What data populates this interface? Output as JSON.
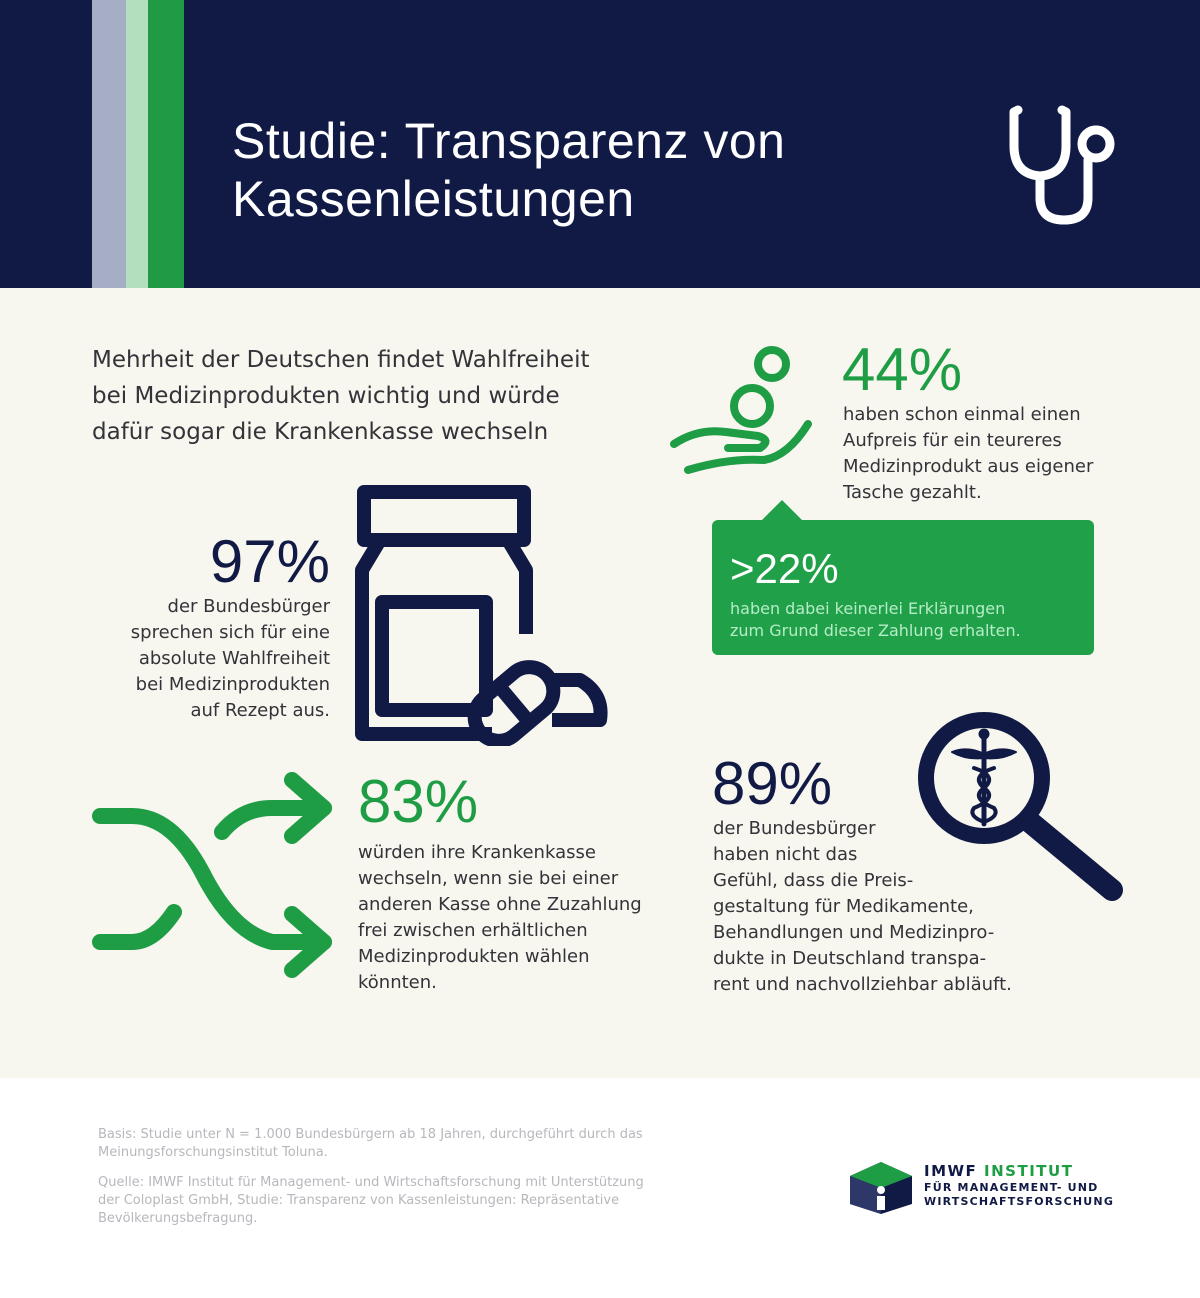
{
  "header": {
    "title_line1": "Studie: Transparenz von",
    "title_line2": "Kassenleistungen",
    "icon": "stethoscope-icon"
  },
  "intro": {
    "line1": "Mehrheit der Deutschen findet Wahlfreiheit",
    "line2": "bei Medizinprodukten wichtig und würde",
    "line3": "dafür sogar die Krankenkasse wechseln"
  },
  "stats": {
    "s44": {
      "value": "44%",
      "lines": [
        "haben schon einmal einen",
        "Aufpreis für ein teureres",
        "Medizinprodukt aus eigener",
        "Tasche gezahlt."
      ],
      "icon": "hand-coins-icon"
    },
    "s22": {
      "value": ">22%",
      "lines": [
        "haben dabei keinerlei Erklärungen",
        "zum Grund dieser Zahlung erhalten."
      ]
    },
    "s97": {
      "value": "97%",
      "lines": [
        "der Bundesbürger",
        "sprechen sich für eine",
        "absolute Wahlfreiheit",
        "bei Medizinprodukten",
        "auf Rezept aus."
      ],
      "icon": "pill-jar-icon"
    },
    "s83": {
      "value": "83%",
      "lines": [
        "würden ihre Krankenkasse",
        "wechseln, wenn sie bei einer",
        "anderen Kasse ohne Zuzahlung",
        "frei zwischen erhältlichen",
        "Medizinprodukten wählen",
        "könnten."
      ],
      "icon": "shuffle-arrows-icon"
    },
    "s89": {
      "value": "89%",
      "lines": [
        "der Bundesbürger",
        "haben nicht das",
        "Gefühl, dass die Preis-",
        "gestaltung für Medikamente,",
        "Behandlungen und Medizinpro-",
        "dukte in Deutschland transpa-",
        "rent und nachvollziehbar abläuft."
      ],
      "icon": "magnifier-caduceus-icon"
    }
  },
  "footer": {
    "basis_lines": [
      "Basis: Studie unter N = 1.000 Bundesbürgern ab 18 Jahren, durchgeführt durch das",
      "Meinungsforschungsinstitut Toluna."
    ],
    "source_lines": [
      "Quelle: IMWF Institut für Management- und Wirtschaftsforschung mit Unterstützung",
      "der Coloplast GmbH, Studie: Transparenz von Kassenleistungen: Repräsentative",
      "Bevölkerungsbefragung."
    ],
    "logo": {
      "name": "IMWF",
      "accent": "INSTITUT",
      "line2": "FÜR MANAGEMENT- UND",
      "line3": "WIRTSCHAFTSFORSCHUNG"
    }
  },
  "colors": {
    "navy": "#111a45",
    "green": "#1f9d45",
    "background": "#f7f6ef"
  }
}
